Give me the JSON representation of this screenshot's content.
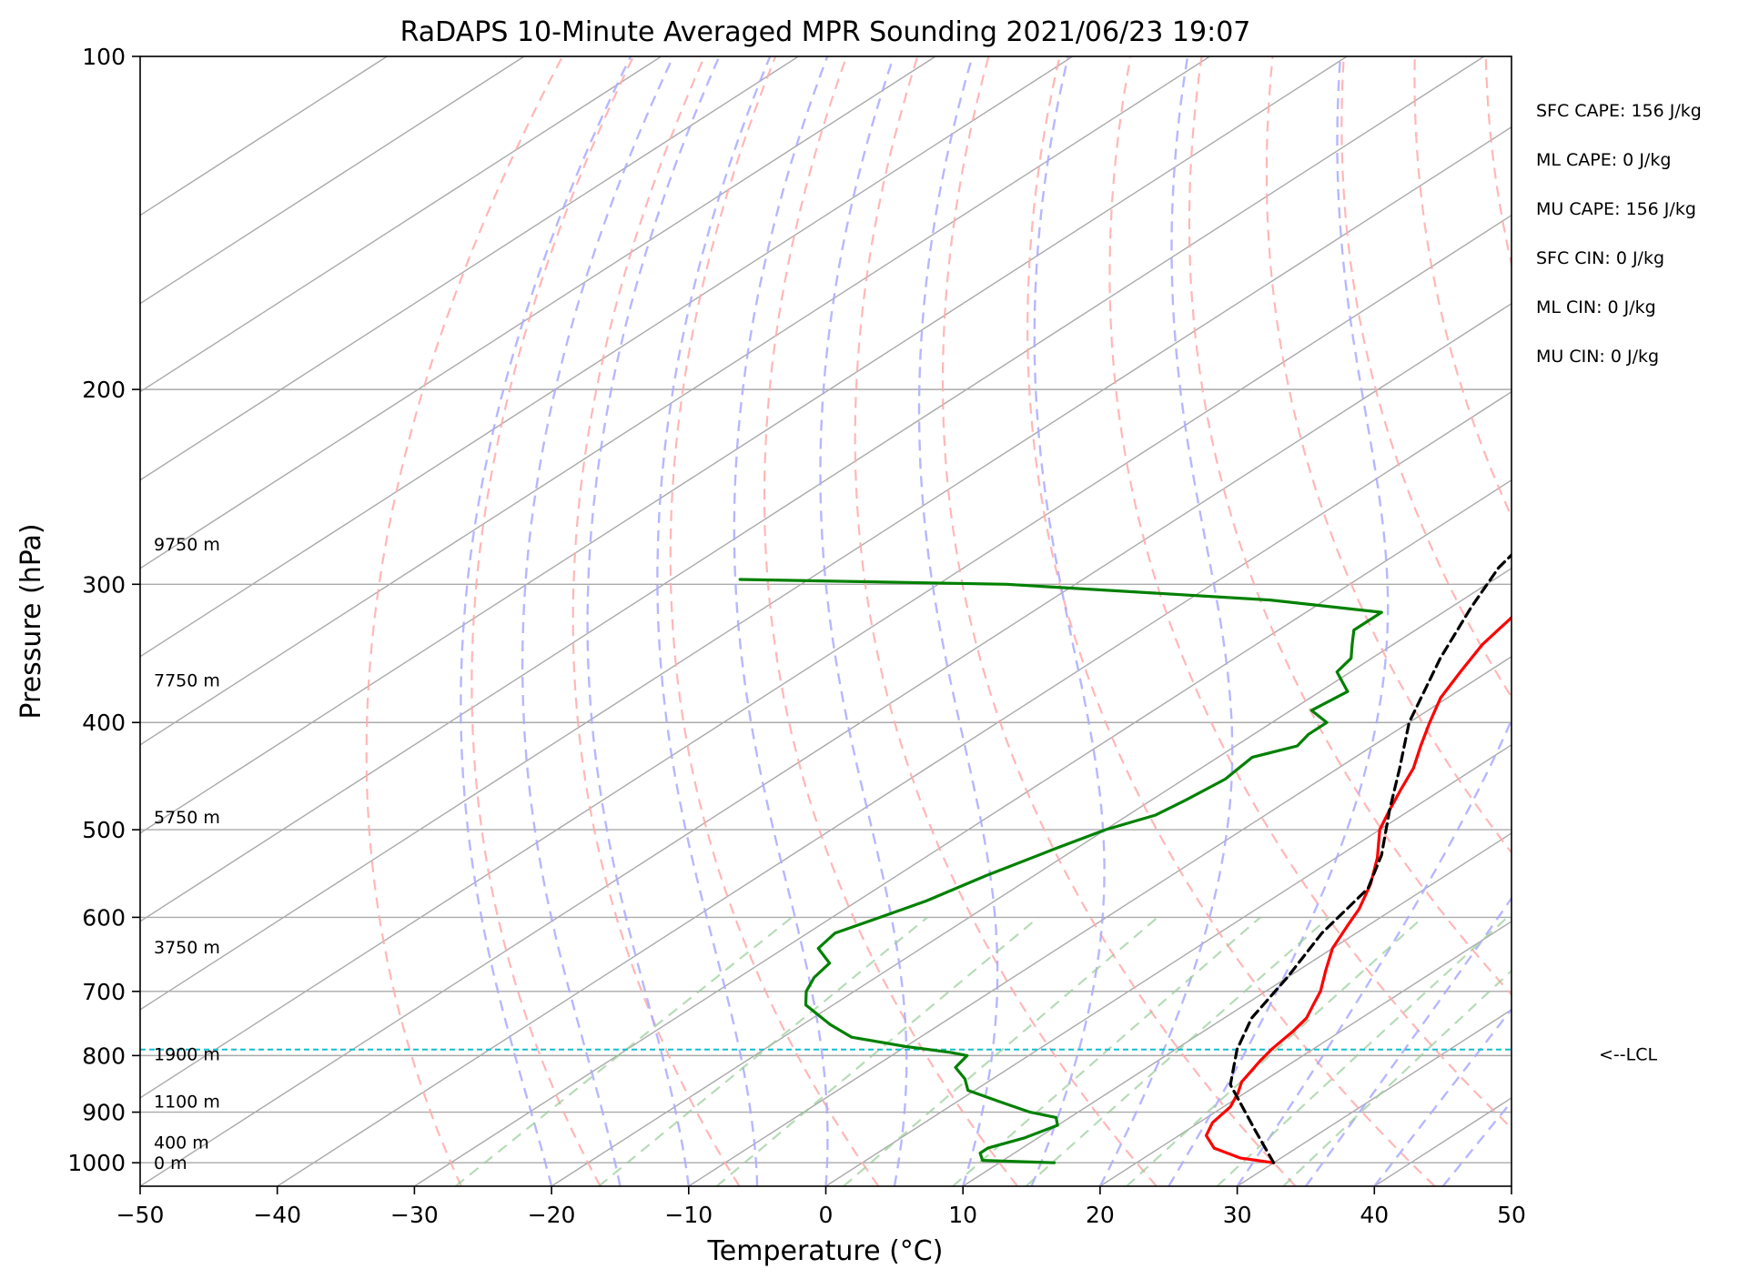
{
  "chart_data": {
    "type": "line",
    "subtype": "skew-t log-p",
    "title": "RaDAPS 10-Minute Averaged MPR Sounding 2021/06/23 19:07",
    "xlabel": "Temperature (°C)",
    "ylabel": "Pressure (hPa)",
    "xlim": [
      -50,
      50
    ],
    "ylim": [
      1050,
      100
    ],
    "y_scale": "log",
    "x_ticks": [
      -50,
      -40,
      -30,
      -20,
      -10,
      0,
      10,
      20,
      30,
      40,
      50
    ],
    "x_tick_labels": [
      "−50",
      "−40",
      "−30",
      "−20",
      "−10",
      "0",
      "10",
      "20",
      "30",
      "40",
      "50"
    ],
    "y_ticks": [
      1000,
      900,
      800,
      700,
      600,
      500,
      400,
      300,
      200,
      100
    ],
    "y_tick_labels": [
      "1000",
      "900",
      "800",
      "700",
      "600",
      "500",
      "400",
      "300",
      "200",
      "100"
    ],
    "grid": true,
    "colors": {
      "temperature": "#ff0000",
      "dewpoint": "#008000",
      "parcel": "#000000",
      "lcl": "#17becf",
      "isotherm": "#aaaaaa",
      "dry_adiabat": "#ffaaaa",
      "moist_adiabat": "#aaaaff",
      "mixing_ratio": "#99cc99"
    },
    "series": [
      {
        "key": "temperature",
        "style": "solid",
        "points": [
          [
            30,
            1000
          ],
          [
            27,
            990
          ],
          [
            24,
            970
          ],
          [
            22,
            945
          ],
          [
            21,
            920
          ],
          [
            20.5,
            890
          ],
          [
            19.5,
            865
          ],
          [
            18.5,
            845
          ],
          [
            17.5,
            810
          ],
          [
            17,
            790
          ],
          [
            16.5,
            760
          ],
          [
            16,
            740
          ],
          [
            15,
            720
          ],
          [
            14,
            700
          ],
          [
            12,
            670
          ],
          [
            10,
            640
          ],
          [
            8.5,
            610
          ],
          [
            7.5,
            590
          ],
          [
            5.5,
            560
          ],
          [
            3,
            530
          ],
          [
            0,
            500
          ],
          [
            -1.5,
            480
          ],
          [
            -3,
            460
          ],
          [
            -4.5,
            440
          ],
          [
            -6.5,
            420
          ],
          [
            -8.5,
            400
          ],
          [
            -10.5,
            380
          ],
          [
            -12,
            360
          ],
          [
            -13.5,
            340
          ],
          [
            -14.5,
            320
          ],
          [
            -15.5,
            300
          ],
          [
            -16.5,
            290
          ],
          [
            -18,
            275
          ]
        ]
      },
      {
        "key": "dewpoint",
        "style": "solid",
        "points": [
          [
            14,
            1000
          ],
          [
            8.5,
            995
          ],
          [
            7.5,
            980
          ],
          [
            7.5,
            970
          ],
          [
            9,
            950
          ],
          [
            10,
            925
          ],
          [
            9,
            910
          ],
          [
            6.5,
            900
          ],
          [
            3,
            880
          ],
          [
            -0.5,
            860
          ],
          [
            -2,
            840
          ],
          [
            -4,
            820
          ],
          [
            -4.5,
            800
          ],
          [
            -6,
            795
          ],
          [
            -10,
            785
          ],
          [
            -15,
            770
          ],
          [
            -18,
            750
          ],
          [
            -22,
            720
          ],
          [
            -23.5,
            700
          ],
          [
            -24.5,
            680
          ],
          [
            -25,
            660
          ],
          [
            -27.5,
            640
          ],
          [
            -28,
            620
          ],
          [
            -26.5,
            600
          ],
          [
            -25,
            580
          ],
          [
            -23.5,
            550
          ],
          [
            -21.5,
            520
          ],
          [
            -20,
            500
          ],
          [
            -18,
            485
          ],
          [
            -17.5,
            470
          ],
          [
            -17,
            450
          ],
          [
            -17.5,
            430
          ],
          [
            -15.5,
            420
          ],
          [
            -16,
            410
          ],
          [
            -16,
            400
          ],
          [
            -18.5,
            390
          ],
          [
            -18,
            375
          ],
          [
            -21,
            360
          ],
          [
            -21.5,
            350
          ],
          [
            -23,
            340
          ],
          [
            -24.5,
            330
          ],
          [
            -24.5,
            318
          ],
          [
            -34,
            310
          ],
          [
            -55,
            300
          ],
          [
            -75,
            297
          ]
        ]
      },
      {
        "key": "parcel",
        "style": "dashed",
        "points": [
          [
            30,
            1000
          ],
          [
            25,
            935
          ],
          [
            18,
            850
          ],
          [
            14.5,
            790
          ],
          [
            12,
            740
          ],
          [
            10,
            680
          ],
          [
            7.5,
            620
          ],
          [
            5.8,
            565
          ],
          [
            3,
            527
          ],
          [
            -1.5,
            480
          ],
          [
            -5.5,
            440
          ],
          [
            -10,
            400
          ],
          [
            -15,
            350
          ],
          [
            -18.5,
            315
          ],
          [
            -21,
            290
          ],
          [
            -22,
            275
          ]
        ]
      }
    ],
    "lcl": {
      "pressure": 790,
      "label": "<--LCL"
    },
    "height_labels": [
      {
        "text": "9750 m",
        "pressure": 276
      },
      {
        "text": "7750 m",
        "pressure": 366
      },
      {
        "text": "5750 m",
        "pressure": 487
      },
      {
        "text": "3750 m",
        "pressure": 638
      },
      {
        "text": "1900 m",
        "pressure": 797
      },
      {
        "text": "1100 m",
        "pressure": 880
      },
      {
        "text": "400 m",
        "pressure": 958
      },
      {
        "text": "0 m",
        "pressure": 1000
      }
    ],
    "stats": [
      "SFC CAPE: 156 J/kg",
      "ML CAPE: 0 J/kg",
      "MU CAPE: 156 J/kg",
      "SFC CIN: 0 J/kg",
      "ML CIN: 0 J/kg",
      "MU CIN: 0 J/kg"
    ]
  }
}
